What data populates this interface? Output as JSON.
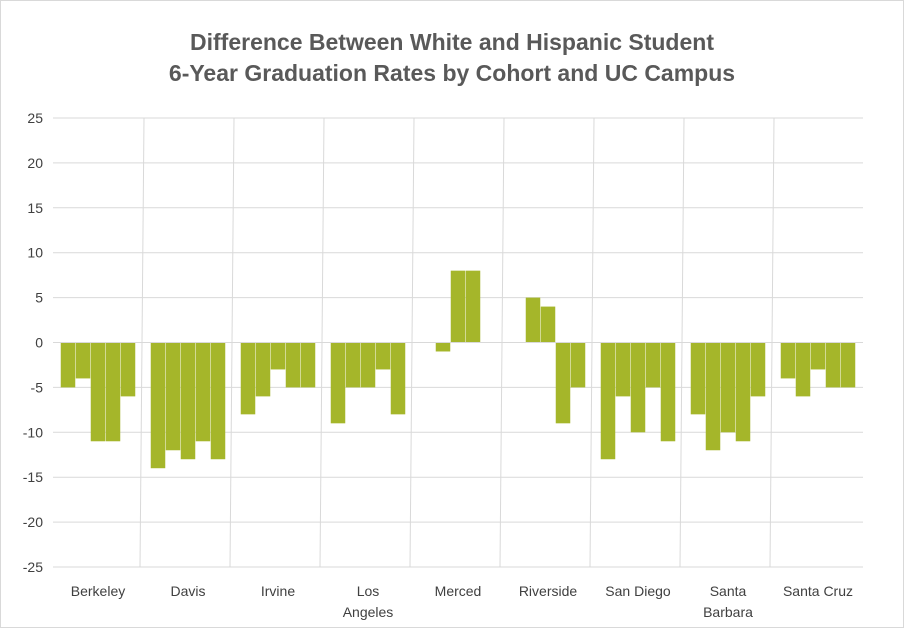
{
  "chart_data": {
    "type": "bar",
    "title": [
      "Difference Between White and Hispanic Student",
      "6-Year Graduation Rates by Cohort and UC Campus"
    ],
    "xlabel": "",
    "ylabel": "",
    "ylim": [
      -25,
      25
    ],
    "yticks": [
      25,
      20,
      15,
      10,
      5,
      0,
      -5,
      -10,
      -15,
      -20,
      -25
    ],
    "grid": true,
    "legend": "none",
    "bar_color": "#a5b62a",
    "categories": [
      {
        "label": [
          "Berkeley"
        ],
        "values": [
          -5,
          -4,
          -11,
          -11,
          -6
        ]
      },
      {
        "label": [
          "Davis"
        ],
        "values": [
          -14,
          -12,
          -13,
          -11,
          -13
        ]
      },
      {
        "label": [
          "Irvine"
        ],
        "values": [
          -8,
          -6,
          -3,
          -5,
          -5
        ]
      },
      {
        "label": [
          "Los",
          "Angeles"
        ],
        "values": [
          -9,
          -5,
          -5,
          -3,
          -8
        ]
      },
      {
        "label": [
          "Merced"
        ],
        "values": [
          null,
          -1,
          8,
          8,
          null
        ]
      },
      {
        "label": [
          "Riverside"
        ],
        "values": [
          null,
          5,
          4,
          -9,
          -5
        ]
      },
      {
        "label": [
          "San Diego"
        ],
        "values": [
          -13,
          -6,
          -10,
          -5,
          -11
        ]
      },
      {
        "label": [
          "Santa",
          "Barbara"
        ],
        "values": [
          -8,
          -12,
          -10,
          -11,
          -6
        ]
      },
      {
        "label": [
          "Santa Cruz"
        ],
        "values": [
          -4,
          -6,
          -3,
          -5,
          -5
        ]
      }
    ]
  }
}
